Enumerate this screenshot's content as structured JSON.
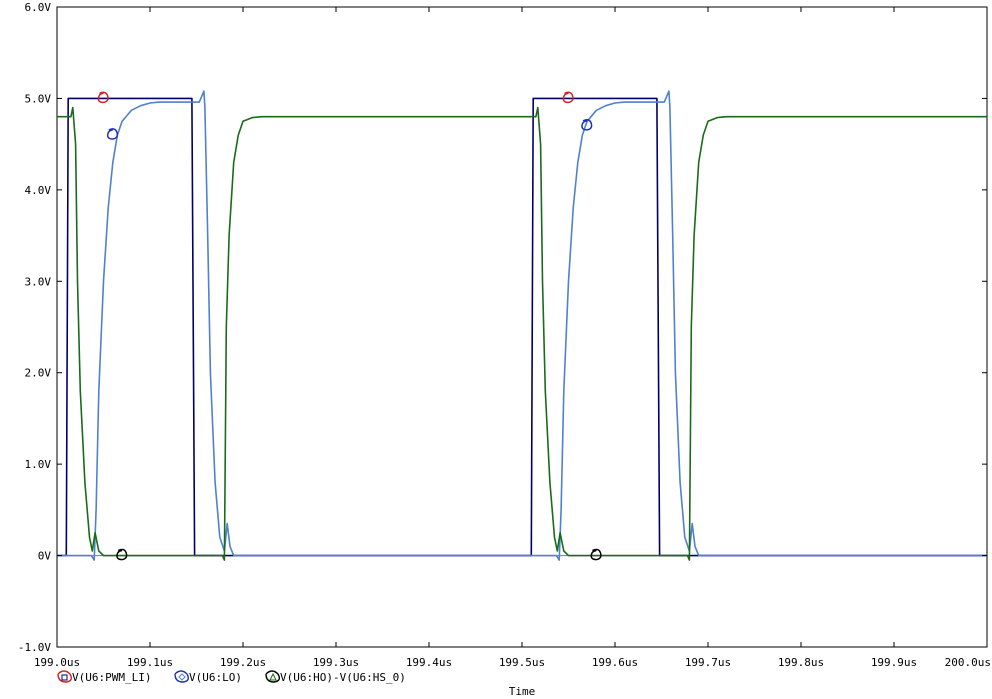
{
  "chart_data": {
    "type": "line",
    "xlabel": "Time",
    "ylabel": "",
    "xlim": [
      199.0,
      200.0
    ],
    "ylim": [
      -1.0,
      6.0
    ],
    "grid": false,
    "legend_position": "bottom-left",
    "x_ticks": [
      {
        "value": 199.0,
        "label": "199.0us"
      },
      {
        "value": 199.1,
        "label": "199.1us"
      },
      {
        "value": 199.2,
        "label": "199.2us"
      },
      {
        "value": 199.3,
        "label": "199.3us"
      },
      {
        "value": 199.4,
        "label": "199.4us"
      },
      {
        "value": 199.5,
        "label": "199.5us"
      },
      {
        "value": 199.6,
        "label": "199.6us"
      },
      {
        "value": 199.7,
        "label": "199.7us"
      },
      {
        "value": 199.8,
        "label": "199.8us"
      },
      {
        "value": 199.9,
        "label": "199.9us"
      },
      {
        "value": 200.0,
        "label": "200.0us"
      }
    ],
    "y_ticks": [
      {
        "value": 6.0,
        "label": "6.0V"
      },
      {
        "value": 5.0,
        "label": "5.0V"
      },
      {
        "value": 4.0,
        "label": "4.0V"
      },
      {
        "value": 3.0,
        "label": "3.0V"
      },
      {
        "value": 2.0,
        "label": "2.0V"
      },
      {
        "value": 1.0,
        "label": "1.0V"
      },
      {
        "value": 0.0,
        "label": "0V"
      },
      {
        "value": -1.0,
        "label": "-1.0V"
      }
    ],
    "series": [
      {
        "name": "V(U6:PWM_LI)",
        "color": "#000066",
        "marker": "square",
        "x": [
          199.0,
          199.01,
          199.012,
          199.145,
          199.148,
          199.16,
          199.5,
          199.51,
          199.512,
          199.645,
          199.648,
          199.66,
          200.0
        ],
        "y": [
          0,
          0,
          5.0,
          5.0,
          0,
          0,
          0,
          0,
          5.0,
          5.0,
          0,
          0,
          0
        ]
      },
      {
        "name": "V(U6:LO)",
        "color": "#5080d0",
        "marker": "diamond",
        "x": [
          199.0,
          199.037,
          199.04,
          199.042,
          199.045,
          199.05,
          199.055,
          199.06,
          199.065,
          199.07,
          199.08,
          199.09,
          199.1,
          199.11,
          199.12,
          199.13,
          199.14,
          199.153,
          199.158,
          199.159,
          199.162,
          199.165,
          199.17,
          199.175,
          199.18,
          199.183,
          199.186,
          199.19,
          199.2,
          199.5,
          199.537,
          199.54,
          199.542,
          199.545,
          199.55,
          199.555,
          199.56,
          199.565,
          199.57,
          199.58,
          199.59,
          199.6,
          199.61,
          199.62,
          199.63,
          199.64,
          199.653,
          199.658,
          199.659,
          199.662,
          199.665,
          199.67,
          199.675,
          199.68,
          199.683,
          199.686,
          199.69,
          199.7,
          200.0
        ],
        "y": [
          0,
          0,
          -0.05,
          0.5,
          1.8,
          3.0,
          3.8,
          4.3,
          4.6,
          4.75,
          4.87,
          4.92,
          4.95,
          4.96,
          4.96,
          4.96,
          4.96,
          4.96,
          5.08,
          4.9,
          3.5,
          2.0,
          0.8,
          0.2,
          0.05,
          0.35,
          0.1,
          0,
          0,
          0,
          0,
          -0.05,
          0.5,
          1.8,
          3.0,
          3.8,
          4.3,
          4.6,
          4.75,
          4.87,
          4.92,
          4.95,
          4.96,
          4.96,
          4.96,
          4.96,
          4.96,
          5.08,
          4.9,
          3.5,
          2.0,
          0.8,
          0.2,
          0.05,
          0.35,
          0.1,
          0,
          0,
          0
        ]
      },
      {
        "name": "V(U6:HO)-V(U6:HS_0)",
        "color": "#1a6b1a",
        "marker": "triangle",
        "x": [
          199.0,
          199.015,
          199.017,
          199.02,
          199.022,
          199.025,
          199.03,
          199.035,
          199.038,
          199.041,
          199.045,
          199.05,
          199.06,
          199.07,
          199.1,
          199.178,
          199.18,
          199.182,
          199.185,
          199.19,
          199.195,
          199.2,
          199.21,
          199.22,
          199.25,
          199.515,
          199.517,
          199.52,
          199.522,
          199.525,
          199.53,
          199.535,
          199.538,
          199.541,
          199.545,
          199.55,
          199.56,
          199.57,
          199.6,
          199.678,
          199.68,
          199.682,
          199.685,
          199.69,
          199.695,
          199.7,
          199.71,
          199.72,
          199.75,
          200.0
        ],
        "y": [
          4.8,
          4.8,
          4.9,
          4.5,
          3.0,
          1.8,
          0.8,
          0.2,
          0.05,
          0.25,
          0.05,
          0,
          0,
          0,
          0,
          0,
          -0.05,
          2.5,
          3.5,
          4.3,
          4.6,
          4.75,
          4.79,
          4.8,
          4.8,
          4.8,
          4.9,
          4.5,
          3.0,
          1.8,
          0.8,
          0.2,
          0.05,
          0.25,
          0.05,
          0,
          0,
          0,
          0,
          0,
          -0.05,
          2.5,
          3.5,
          4.3,
          4.6,
          4.75,
          4.79,
          4.8,
          4.8,
          4.8
        ]
      }
    ],
    "annotations": [
      {
        "color": "#d62020",
        "shape": "loop",
        "x": 199.05,
        "y": 5.0
      },
      {
        "color": "#d62020",
        "shape": "loop",
        "x": 199.55,
        "y": 5.0
      },
      {
        "color": "#1e2fb8",
        "shape": "loop",
        "x": 199.06,
        "y": 4.6
      },
      {
        "color": "#1e2fb8",
        "shape": "loop",
        "x": 199.57,
        "y": 4.7
      },
      {
        "color": "#000000",
        "shape": "loop",
        "x": 199.07,
        "y": 0.0
      },
      {
        "color": "#000000",
        "shape": "loop",
        "x": 199.58,
        "y": 0.0
      }
    ]
  }
}
